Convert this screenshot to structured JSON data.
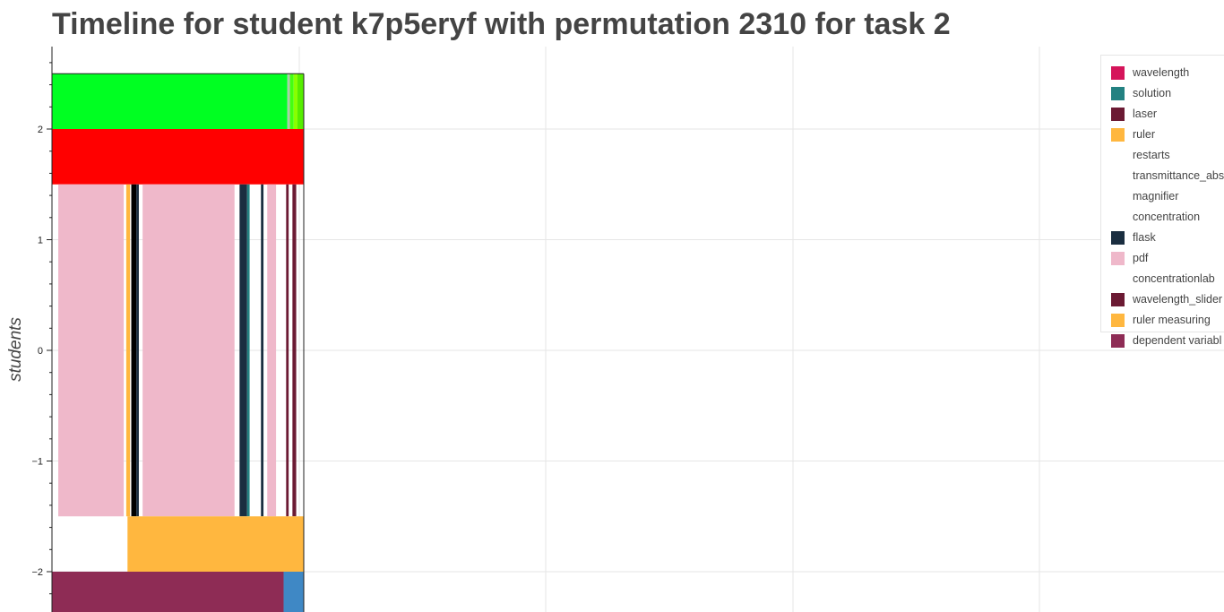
{
  "title": "Timeline for student k7p5eryf with permutation 2310 for task 2",
  "chart_data": {
    "type": "bar",
    "title": "Timeline for student k7p5eryf with permutation 2310 for task 2",
    "xlabel": "",
    "ylabel": "students",
    "ylim": [
      -2.35,
      2.75
    ],
    "yticks": [
      -2,
      -1,
      0,
      1,
      2
    ],
    "ytick_labels": [
      "−2",
      "−1",
      "0",
      "1",
      "2"
    ],
    "grid": true,
    "legend_position": "top-right",
    "legend": [
      {
        "name": "wavelength",
        "color": "#d5145a"
      },
      {
        "name": "solution",
        "color": "#238181"
      },
      {
        "name": "laser",
        "color": "#6b1a33"
      },
      {
        "name": "ruler",
        "color": "#ffb73f"
      },
      {
        "name": "restarts",
        "color": "#ffffff"
      },
      {
        "name": "transmittance_abs",
        "color": "#ffffff"
      },
      {
        "name": "magnifier",
        "color": "#ffffff"
      },
      {
        "name": "concentration",
        "color": "#ffffff"
      },
      {
        "name": "flask",
        "color": "#1a2e40"
      },
      {
        "name": "pdf",
        "color": "#efb8ca"
      },
      {
        "name": "concentrationlab",
        "color": "#ffffff"
      },
      {
        "name": "wavelength_slider",
        "color": "#6b1a33"
      },
      {
        "name": "ruler measuring",
        "color": "#ffb73f"
      },
      {
        "name": "dependent variabl",
        "color": "#8e2c55"
      }
    ],
    "bands": [
      {
        "row": "top",
        "y0": 2.0,
        "y1": 2.5,
        "segments": [
          {
            "x0": 0.0,
            "x1": 0.935,
            "color": "#00ff22"
          },
          {
            "x0": 0.935,
            "x1": 0.945,
            "color": "#aaccaa"
          },
          {
            "x0": 0.945,
            "x1": 0.96,
            "color": "#44ff11"
          },
          {
            "x0": 0.96,
            "x1": 0.975,
            "color": "#88ff00"
          },
          {
            "x0": 0.975,
            "x1": 1.0,
            "color": "#55ee00"
          }
        ]
      },
      {
        "row": "second",
        "y0": 1.5,
        "y1": 2.0,
        "segments": [
          {
            "x0": 0.0,
            "x1": 1.0,
            "color": "#ff0000"
          }
        ]
      },
      {
        "row": "activities",
        "y0": -1.5,
        "y1": 1.5,
        "segments": [
          {
            "x0": 0.025,
            "x1": 0.285,
            "color": "#efb8ca"
          },
          {
            "x0": 0.295,
            "x1": 0.31,
            "color": "#ffb73f"
          },
          {
            "x0": 0.315,
            "x1": 0.335,
            "color": "#000000"
          },
          {
            "x0": 0.335,
            "x1": 0.345,
            "color": "#1a2e40"
          },
          {
            "x0": 0.36,
            "x1": 0.725,
            "color": "#efb8ca"
          },
          {
            "x0": 0.745,
            "x1": 0.775,
            "color": "#1a2e40"
          },
          {
            "x0": 0.775,
            "x1": 0.785,
            "color": "#238181"
          },
          {
            "x0": 0.83,
            "x1": 0.84,
            "color": "#1a2e40"
          },
          {
            "x0": 0.855,
            "x1": 0.89,
            "color": "#efb8ca"
          },
          {
            "x0": 0.93,
            "x1": 0.94,
            "color": "#6b1a33"
          },
          {
            "x0": 0.955,
            "x1": 0.97,
            "color": "#6b1a33"
          }
        ]
      },
      {
        "row": "ruler measuring",
        "y0": -2.0,
        "y1": -1.5,
        "segments": [
          {
            "x0": 0.3,
            "x1": 1.0,
            "color": "#ffb73f"
          }
        ]
      },
      {
        "row": "dependent variable",
        "y0": -2.5,
        "y1": -2.0,
        "segments": [
          {
            "x0": 0.0,
            "x1": 0.92,
            "color": "#8e2c55"
          },
          {
            "x0": 0.92,
            "x1": 1.0,
            "color": "#3f88c5"
          }
        ]
      }
    ]
  }
}
